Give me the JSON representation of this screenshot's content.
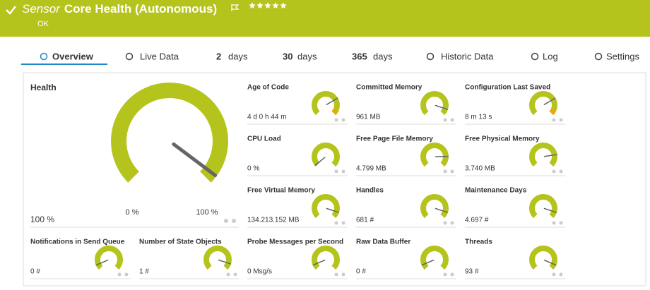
{
  "header": {
    "title_prefix": "Sensor",
    "title": "Core Health (Autonomous)",
    "status": "OK"
  },
  "tabs": [
    {
      "label": "Overview"
    },
    {
      "label": "Live Data"
    },
    {
      "number": "2",
      "label": "days"
    },
    {
      "number": "30",
      "label": "days"
    },
    {
      "number": "365",
      "label": "days"
    },
    {
      "label": "Historic Data"
    },
    {
      "label": "Log"
    },
    {
      "label": "Settings"
    }
  ],
  "health": {
    "label": "Health",
    "value": "100 %",
    "min": "0 %",
    "max": "100 %"
  },
  "channels": [
    {
      "label": "Age of Code",
      "value": "4 d 0 h 44 m"
    },
    {
      "label": "Committed Memory",
      "value": "961 MB"
    },
    {
      "label": "Configuration Last Saved",
      "value": "8 m 13 s"
    },
    {
      "label": "CPU Load",
      "value": "0 %"
    },
    {
      "label": "Free Page File Memory",
      "value": "4.799 MB"
    },
    {
      "label": "Free Physical Memory",
      "value": "3.740 MB"
    },
    {
      "label": "Free Virtual Memory",
      "value": "134.213.152 MB"
    },
    {
      "label": "Handles",
      "value": "681 #"
    },
    {
      "label": "Maintenance Days",
      "value": "4.697 #"
    },
    {
      "label": "Notifications in Send Queue",
      "value": "0 #"
    },
    {
      "label": "Number of State Objects",
      "value": "1 #"
    },
    {
      "label": "Probe Messages per Second",
      "value": "0 Msg/s"
    },
    {
      "label": "Raw Data Buffer",
      "value": "0 #"
    },
    {
      "label": "Threads",
      "value": "93 #"
    }
  ]
}
